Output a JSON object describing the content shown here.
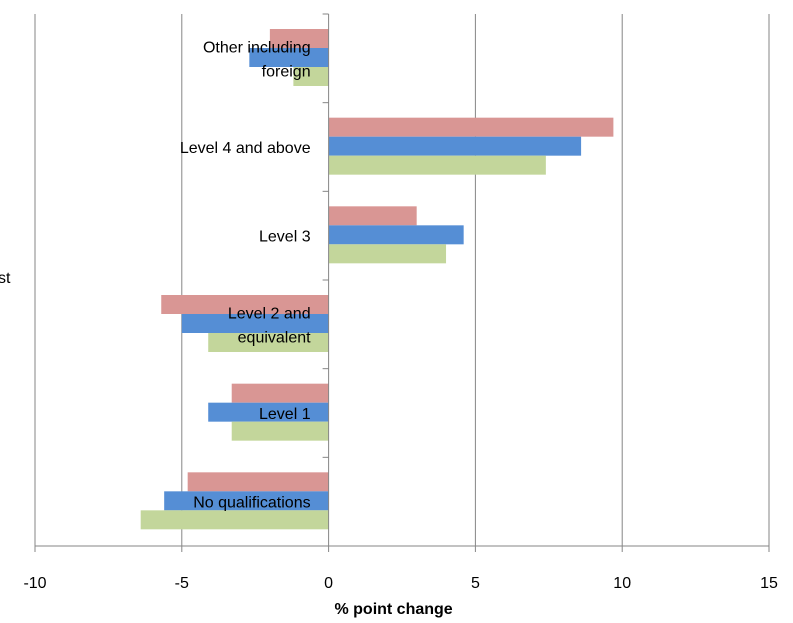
{
  "chart_data": {
    "type": "bar",
    "orientation": "horizontal",
    "categories": [
      "No qualifications",
      "Level 1",
      "Level 2 and equivalent",
      "Level 3",
      "Level 4 and above",
      "Other including foreign"
    ],
    "category_label_lines": [
      [
        "No qualifications"
      ],
      [
        "Level 1"
      ],
      [
        "Level 2 and",
        "equivalent"
      ],
      [
        "Level 3"
      ],
      [
        "Level 4 and above"
      ],
      [
        "Other including",
        "foreign"
      ]
    ],
    "series": [
      {
        "color": "#D99694",
        "values": [
          -4.8,
          -3.3,
          -5.7,
          3.0,
          9.7,
          -2.0
        ]
      },
      {
        "color": "#558ED5",
        "values": [
          -5.6,
          -4.1,
          -5.0,
          4.6,
          8.6,
          -2.7
        ]
      },
      {
        "color": "#C3D69B",
        "values": [
          -6.4,
          -3.3,
          -4.1,
          4.0,
          7.4,
          -1.2
        ]
      }
    ],
    "xlim": [
      -10,
      15
    ],
    "xticks": [
      "-10",
      "-5",
      "0",
      "5",
      "10",
      "15"
    ],
    "xlabel": "% point change",
    "title": "",
    "grid": "vertical",
    "legend": "none"
  },
  "side_text": "st"
}
